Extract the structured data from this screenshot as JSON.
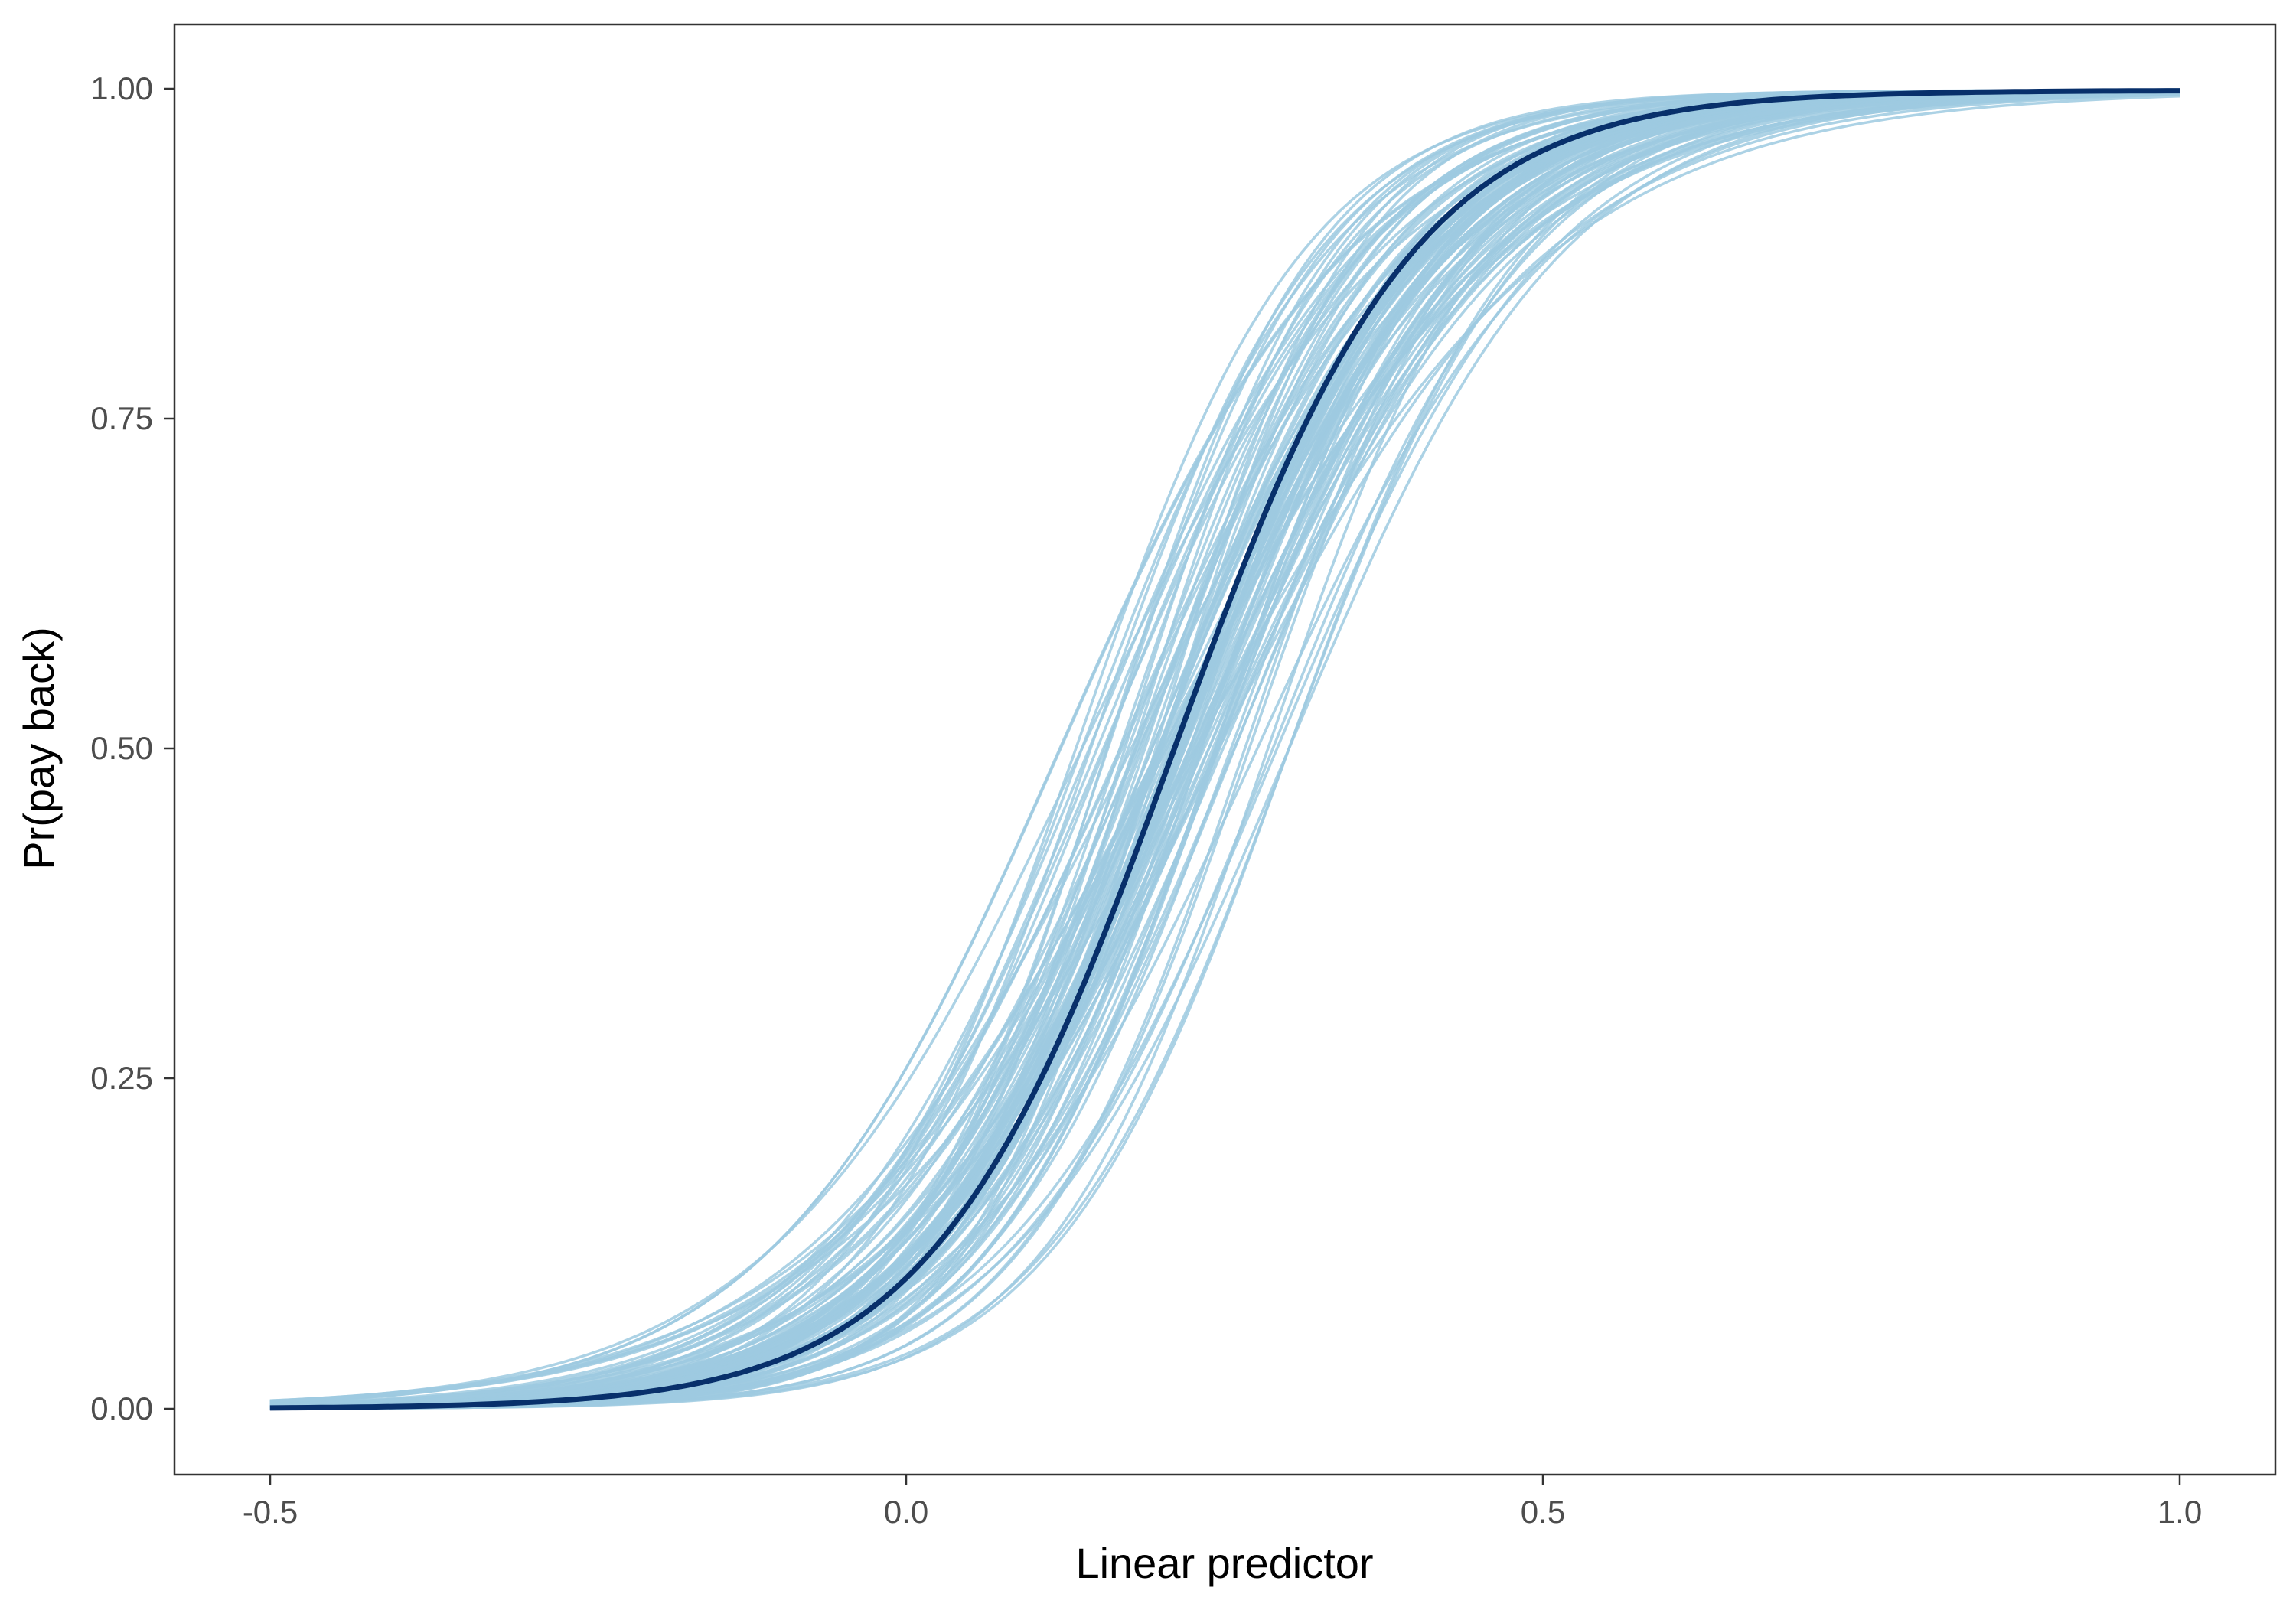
{
  "chart_data": {
    "type": "line",
    "title": "",
    "xlabel": "Linear predictor",
    "ylabel": "Pr(pay back)",
    "xlim": [
      -0.575,
      1.075
    ],
    "ylim": [
      -0.05,
      1.05
    ],
    "x_ticks": [
      -0.5,
      0.0,
      0.5,
      1.0
    ],
    "x_tick_labels": [
      "-0.5",
      "0.0",
      "0.5",
      "1.0"
    ],
    "y_ticks": [
      0.0,
      0.25,
      0.5,
      0.75,
      1.0
    ],
    "y_tick_labels": [
      "0.00",
      "0.25",
      "0.50",
      "0.75",
      "1.00"
    ],
    "grid": false,
    "legend": "none",
    "x_range": [
      -0.5,
      1.0
    ],
    "mean_curve": {
      "model": "logistic",
      "midpoint": 0.21,
      "slope": 10.5,
      "color": "#08306b"
    },
    "draw_curves": {
      "model": "logistic",
      "count": 100,
      "midpoint_range": [
        0.12,
        0.3
      ],
      "slope_range": [
        7.0,
        13.0
      ],
      "color": "#9ecae1"
    }
  }
}
